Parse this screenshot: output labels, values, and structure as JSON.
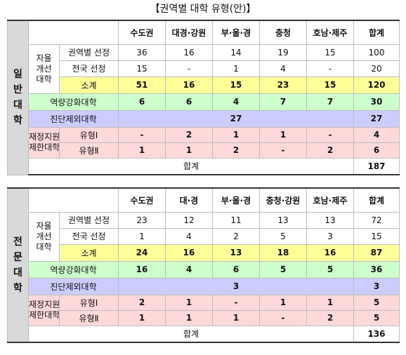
{
  "title": "【권역별 대학 유형(안)】",
  "sections": [
    {
      "name_chars": [
        "일",
        "반",
        "대",
        "학"
      ],
      "columns": [
        "수도권",
        "대경·강원",
        "부·울·경",
        "충청",
        "호남·제주",
        "합계"
      ],
      "group1_label": "자율\n개선\n대학",
      "group1_rows": [
        {
          "label": "권역별 선정",
          "values": [
            "36",
            "16",
            "14",
            "19",
            "15",
            "100"
          ]
        },
        {
          "label": "전국 선정",
          "values": [
            "15",
            "-",
            "1",
            "4",
            "-",
            "20"
          ]
        },
        {
          "label": "소계",
          "values": [
            "51",
            "16",
            "15",
            "23",
            "15",
            "120"
          ]
        }
      ],
      "capacity_label": "역량강화대학",
      "capacity_values": [
        "6",
        "6",
        "4",
        "7",
        "7",
        "30"
      ],
      "excluded_label": "진단제외대학",
      "excluded_value": "27",
      "excluded_total": "27",
      "group2_label": "재정지원\n제한대학",
      "group2_rows": [
        {
          "label": "유형Ⅰ",
          "values": [
            "-",
            "2",
            "1",
            "1",
            "-",
            "4"
          ]
        },
        {
          "label": "유형Ⅱ",
          "values": [
            "1",
            "1",
            "2",
            "-",
            "2",
            "6"
          ]
        }
      ],
      "total_label": "합계",
      "total_value": "187"
    },
    {
      "name_chars": [
        "전",
        "문",
        "대",
        "학"
      ],
      "columns": [
        "수도권",
        "대·경",
        "부·울·경",
        "충청·강원",
        "호남·제주",
        "합계"
      ],
      "group1_label": "자율\n개선\n대학",
      "group1_rows": [
        {
          "label": "권역별 선정",
          "values": [
            "23",
            "12",
            "11",
            "13",
            "13",
            "72"
          ]
        },
        {
          "label": "전국 선정",
          "values": [
            "1",
            "4",
            "2",
            "5",
            "3",
            "15"
          ]
        },
        {
          "label": "소계",
          "values": [
            "24",
            "16",
            "13",
            "18",
            "16",
            "87"
          ]
        }
      ],
      "capacity_label": "역량강화대학",
      "capacity_values": [
        "16",
        "4",
        "6",
        "5",
        "5",
        "36"
      ],
      "excluded_label": "진단제외대학",
      "excluded_value": "3",
      "excluded_total": "3",
      "group2_label": "재정지원\n제한대학",
      "group2_rows": [
        {
          "label": "유형Ⅰ",
          "values": [
            "2",
            "1",
            "-",
            "1",
            "1",
            "5"
          ]
        },
        {
          "label": "유형Ⅱ",
          "values": [
            "1",
            "1",
            "1",
            "-",
            "2",
            "5"
          ]
        }
      ],
      "total_label": "합계",
      "total_value": "136"
    }
  ]
}
